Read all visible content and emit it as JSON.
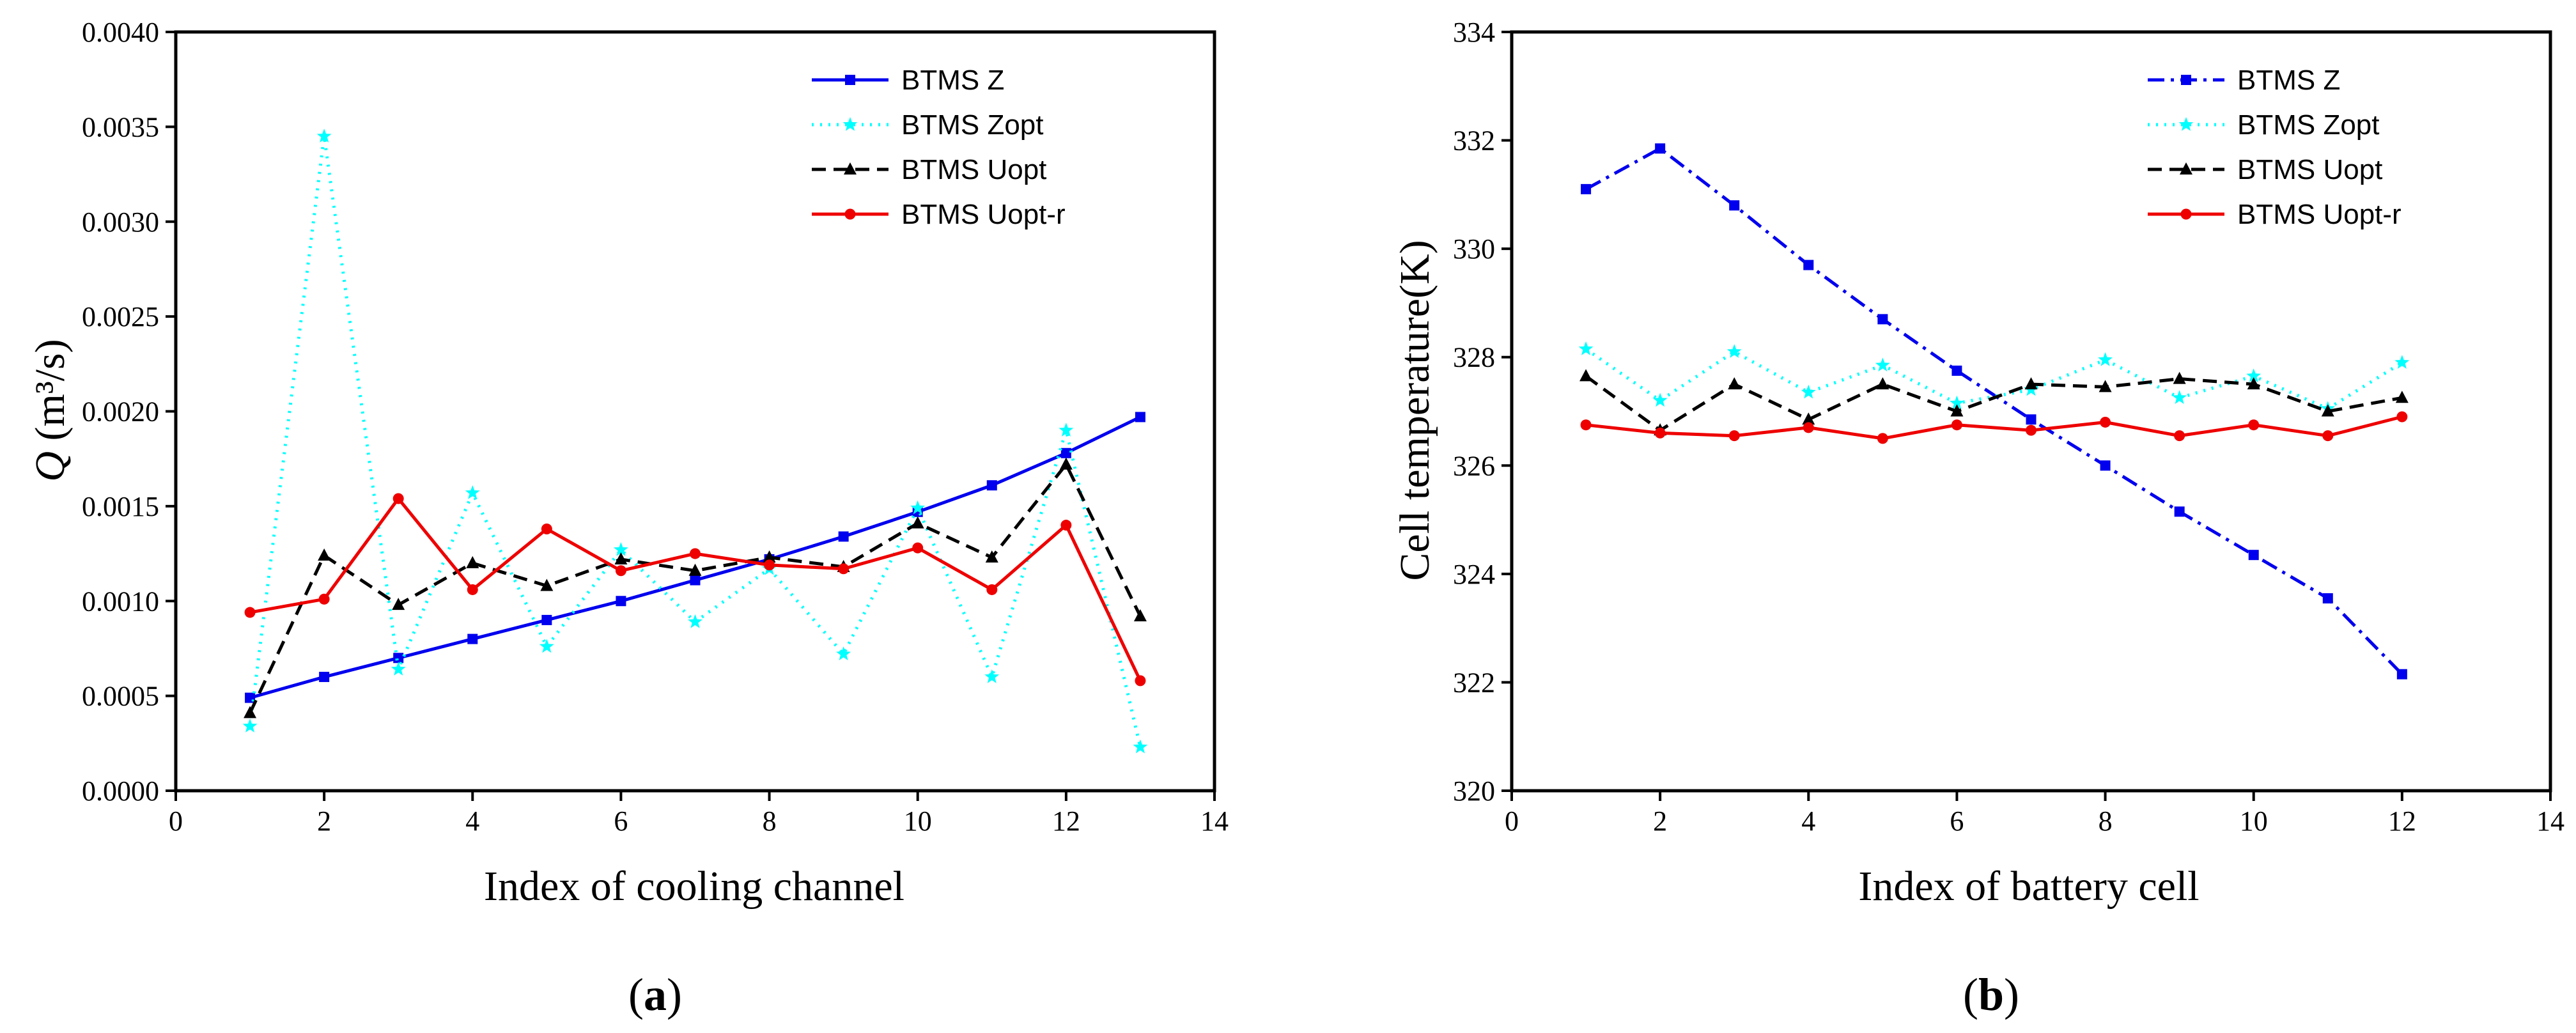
{
  "chart_data": [
    {
      "type": "line",
      "panel": "a",
      "caption_open": "(",
      "caption_letter": "a",
      "caption_close": ")",
      "xlabel": "Index of cooling channel",
      "ylabel_italic": "Q",
      "ylabel_rest": " (m³/s)",
      "xlim": [
        0,
        14
      ],
      "ylim": [
        0,
        0.004
      ],
      "xticks": [
        "0",
        "2",
        "4",
        "6",
        "8",
        "10",
        "12",
        "14"
      ],
      "yticks": [
        "0.0000",
        "0.0005",
        "0.0010",
        "0.0015",
        "0.0020",
        "0.0025",
        "0.0030",
        "0.0035",
        "0.0040"
      ],
      "x": [
        1,
        2,
        3,
        4,
        5,
        6,
        7,
        8,
        9,
        10,
        11,
        12,
        13
      ],
      "series": [
        {
          "name": "BTMS Z",
          "color": "#0000ee",
          "dash": "solid",
          "marker": "square",
          "values": [
            0.00049,
            0.0006,
            0.0007,
            0.0008,
            0.0009,
            0.001,
            0.00111,
            0.00122,
            0.00134,
            0.00147,
            0.00161,
            0.00178,
            0.00197
          ]
        },
        {
          "name": "BTMS Zopt",
          "color": "#00ffff",
          "dash": "dot",
          "marker": "star",
          "values": [
            0.00034,
            0.00345,
            0.00064,
            0.00157,
            0.00076,
            0.00127,
            0.00089,
            0.00117,
            0.00072,
            0.00149,
            0.0006,
            0.0019,
            0.00023
          ]
        },
        {
          "name": "BTMS Uopt",
          "color": "#000000",
          "dash": "dash",
          "marker": "triangle",
          "values": [
            0.00041,
            0.00124,
            0.00098,
            0.0012,
            0.00108,
            0.00122,
            0.00116,
            0.00123,
            0.00118,
            0.00141,
            0.00123,
            0.00172,
            0.00092
          ]
        },
        {
          "name": "BTMS Uopt-r",
          "color": "#ee0000",
          "dash": "solid",
          "marker": "circle",
          "values": [
            0.00094,
            0.00101,
            0.00154,
            0.00106,
            0.00138,
            0.00116,
            0.00125,
            0.00119,
            0.00117,
            0.00128,
            0.00106,
            0.0014,
            0.00058
          ]
        }
      ]
    },
    {
      "type": "line",
      "panel": "b",
      "caption_open": "(",
      "caption_letter": "b",
      "caption_close": ")",
      "xlabel": "Index of battery cell",
      "ylabel": "Cell temperature(K)",
      "xlim": [
        0,
        14
      ],
      "ylim": [
        320,
        334
      ],
      "xticks": [
        "0",
        "2",
        "4",
        "6",
        "8",
        "10",
        "12",
        "14"
      ],
      "yticks": [
        "320",
        "322",
        "324",
        "326",
        "328",
        "330",
        "332",
        "334"
      ],
      "x": [
        1,
        2,
        3,
        4,
        5,
        6,
        7,
        8,
        9,
        10,
        11,
        12
      ],
      "series": [
        {
          "name": "BTMS Z",
          "color": "#0000ee",
          "dash": "dashdot",
          "marker": "square",
          "values": [
            331.1,
            331.85,
            330.8,
            329.7,
            328.7,
            327.75,
            326.85,
            326.0,
            325.15,
            324.35,
            323.55,
            322.15
          ]
        },
        {
          "name": "BTMS Zopt",
          "color": "#00ffff",
          "dash": "dot",
          "marker": "star",
          "values": [
            328.15,
            327.2,
            328.1,
            327.35,
            327.85,
            327.15,
            327.4,
            327.95,
            327.25,
            327.65,
            327.05,
            327.9
          ]
        },
        {
          "name": "BTMS Uopt",
          "color": "#000000",
          "dash": "dash",
          "marker": "triangle",
          "values": [
            327.65,
            326.65,
            327.5,
            326.85,
            327.5,
            327.0,
            327.5,
            327.45,
            327.6,
            327.5,
            327.0,
            327.25
          ]
        },
        {
          "name": "BTMS Uopt-r",
          "color": "#ee0000",
          "dash": "solid",
          "marker": "circle",
          "values": [
            326.75,
            326.6,
            326.55,
            326.7,
            326.5,
            326.75,
            326.65,
            326.8,
            326.55,
            326.75,
            326.55,
            326.9
          ]
        }
      ]
    }
  ]
}
